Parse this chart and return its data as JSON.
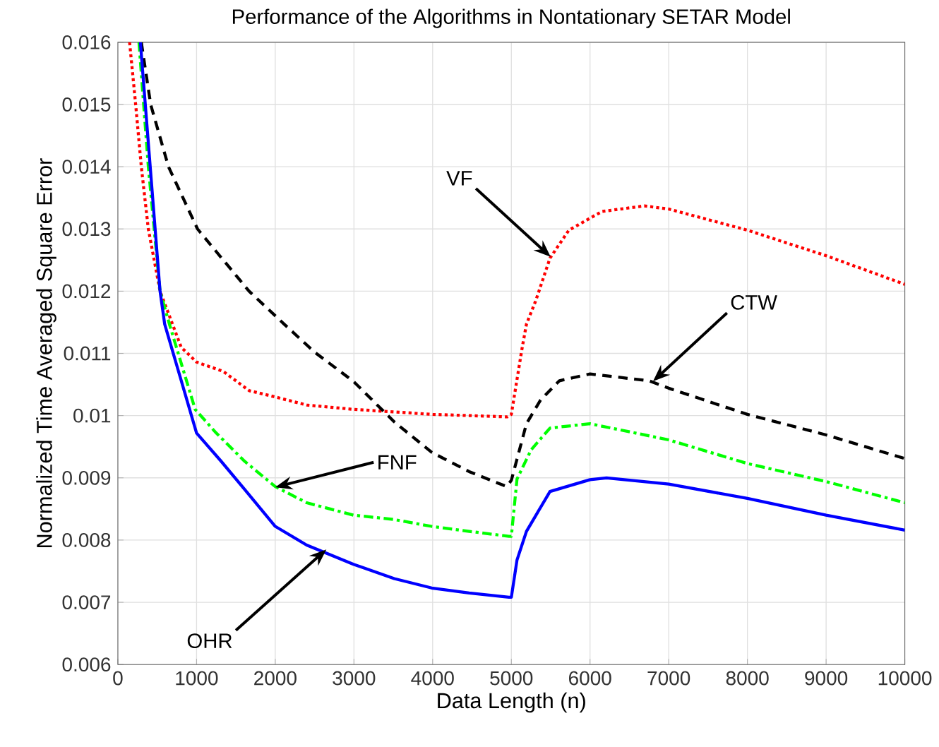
{
  "chart_data": {
    "type": "line",
    "title": "Performance of the Algorithms in Nontationary SETAR Model",
    "xlabel": "Data Length (n)",
    "ylabel": "Normalized Time Averaged Square Error",
    "xlim": [
      0,
      10000
    ],
    "ylim": [
      0.006,
      0.016
    ],
    "xticks": [
      0,
      1000,
      2000,
      3000,
      4000,
      5000,
      6000,
      7000,
      8000,
      9000,
      10000
    ],
    "yticks": [
      0.006,
      0.007,
      0.008,
      0.009,
      0.01,
      0.011,
      0.012,
      0.013,
      0.014,
      0.015,
      0.016
    ],
    "grid": true,
    "series": [
      {
        "color": "#ff0000",
        "line_style": "dotted",
        "x": [
          149,
          226,
          298,
          387,
          536,
          804,
          1000,
          1340,
          1670,
          2000,
          2400,
          3000,
          4000,
          4950,
          5000,
          5132,
          5192,
          5311,
          5491,
          5731,
          6150,
          6689,
          7000,
          8000,
          9000,
          10000
        ],
        "values": [
          0.016,
          0.015,
          0.014,
          0.013,
          0.012,
          0.0111,
          0.01086,
          0.01071,
          0.0104,
          0.0103,
          0.01017,
          0.0101,
          0.01002,
          0.00998,
          0.01002,
          0.01105,
          0.01147,
          0.01185,
          0.01253,
          0.01298,
          0.01328,
          0.01337,
          0.01332,
          0.01298,
          0.01257,
          0.01211
        ]
      },
      {
        "color": "#000000",
        "line_style": "dashed",
        "x": [
          298,
          417,
          643,
          1012,
          1667,
          2113,
          2500,
          2994,
          3512,
          3988,
          4464,
          4940,
          5000,
          5192,
          5371,
          5611,
          6000,
          6750,
          7000,
          8000,
          9000,
          10000
        ],
        "values": [
          0.016,
          0.015,
          0.014,
          0.013,
          0.012,
          0.01147,
          0.01102,
          0.01055,
          0.0099,
          0.00941,
          0.0091,
          0.00886,
          0.00896,
          0.00987,
          0.01025,
          0.01056,
          0.01067,
          0.01056,
          0.01044,
          0.01002,
          0.00969,
          0.00931
        ]
      },
      {
        "color": "#00ff00",
        "line_style": "dashdot",
        "x": [
          268,
          387,
          536,
          655,
          982,
          1250,
          1607,
          2000,
          2399,
          2994,
          3512,
          3988,
          4464,
          4970,
          5000,
          5072,
          5251,
          5491,
          6000,
          7000,
          8000,
          9000,
          10000
        ],
        "values": [
          0.016,
          0.014,
          0.012,
          0.01147,
          0.0101,
          0.00972,
          0.00927,
          0.00886,
          0.0086,
          0.0084,
          0.00833,
          0.00822,
          0.00814,
          0.00806,
          0.00806,
          0.00898,
          0.00945,
          0.0098,
          0.00987,
          0.00961,
          0.00923,
          0.00894,
          0.0086
        ]
      },
      {
        "color": "#0000ff",
        "line_style": "solid",
        "x": [
          286,
          536,
          595,
          1000,
          1310,
          1607,
          2000,
          2399,
          2994,
          3512,
          3988,
          4464,
          4970,
          5000,
          5072,
          5192,
          5491,
          6000,
          6210,
          7000,
          8000,
          9000,
          10000
        ],
        "values": [
          0.016,
          0.012,
          0.01147,
          0.00972,
          0.00927,
          0.00882,
          0.00822,
          0.00792,
          0.00761,
          0.00738,
          0.00723,
          0.00715,
          0.00708,
          0.00708,
          0.00768,
          0.00814,
          0.00878,
          0.00897,
          0.009,
          0.0089,
          0.00867,
          0.0084,
          0.00816
        ]
      }
    ],
    "annotations": [
      {
        "text": "VF",
        "x": 5500,
        "y": 0.01255
      },
      {
        "text": "CTW",
        "x": 6800,
        "y": 0.01055
      },
      {
        "text": "FNF",
        "x": 2000,
        "y": 0.00885
      },
      {
        "text": "OHR",
        "x": 2650,
        "y": 0.00785
      }
    ]
  }
}
